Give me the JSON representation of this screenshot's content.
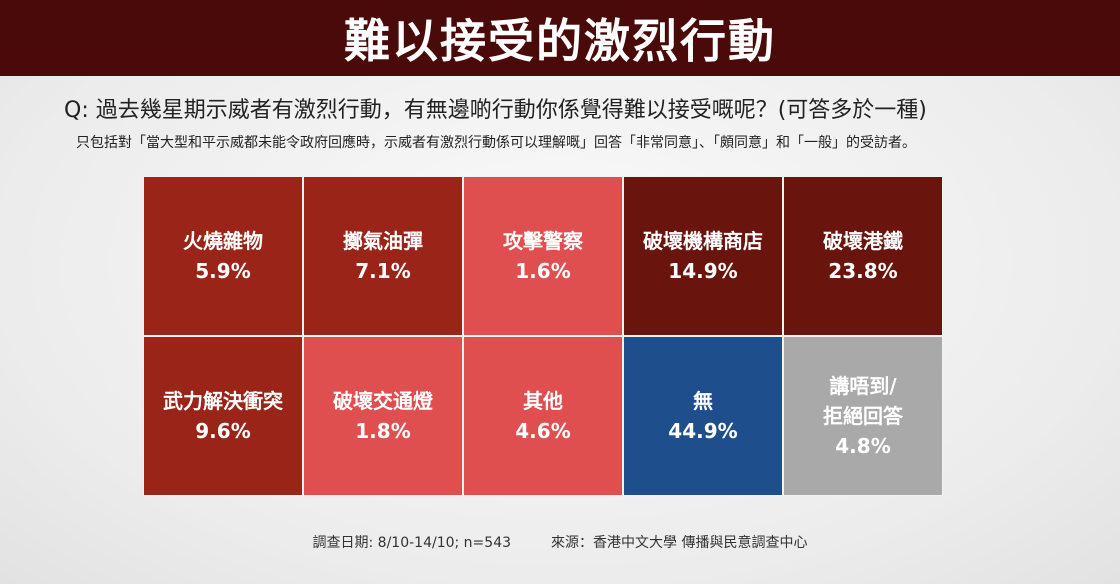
{
  "header": {
    "title": "難以接受的激烈行動"
  },
  "question": "Q: 過去幾星期示威者有激烈行動，有無邊啲行動你係覺得難以接受嘅呢？(可答多於一種)",
  "note": "只包括對「當大型和平示威都未能令政府回應時，示威者有激烈行動係可以理解嘅」回答「非常同意」、「頗同意」和「一般」的受訪者。",
  "chart_data": {
    "type": "table",
    "cells": [
      {
        "label": "火燒雜物",
        "value": "5.9%",
        "percent": 5.9,
        "color": "#9a2418"
      },
      {
        "label": "擲氣油彈",
        "value": "7.1%",
        "percent": 7.1,
        "color": "#9a2418"
      },
      {
        "label": "攻擊警察",
        "value": "1.6%",
        "percent": 1.6,
        "color": "#df4f4f"
      },
      {
        "label": "破壞機構商店",
        "value": "14.9%",
        "percent": 14.9,
        "color": "#6a140e"
      },
      {
        "label": "破壞港鐵",
        "value": "23.8%",
        "percent": 23.8,
        "color": "#6a140e"
      },
      {
        "label": "武力解決衝突",
        "value": "9.6%",
        "percent": 9.6,
        "color": "#9a2418"
      },
      {
        "label": "破壞交通燈",
        "value": "1.8%",
        "percent": 1.8,
        "color": "#df4f4f"
      },
      {
        "label": "其他",
        "value": "4.6%",
        "percent": 4.6,
        "color": "#df4f4f"
      },
      {
        "label": "無",
        "value": "44.9%",
        "percent": 44.9,
        "color": "#1f4e8c"
      },
      {
        "label": "講唔到/\n拒絕回答",
        "value": "4.8%",
        "percent": 4.8,
        "color": "#a9a9a9"
      }
    ]
  },
  "footer": {
    "survey_date": "調查日期: 8/10-14/10; n=543",
    "source": "來源：香港中文大學 傳播與民意調查中心"
  }
}
